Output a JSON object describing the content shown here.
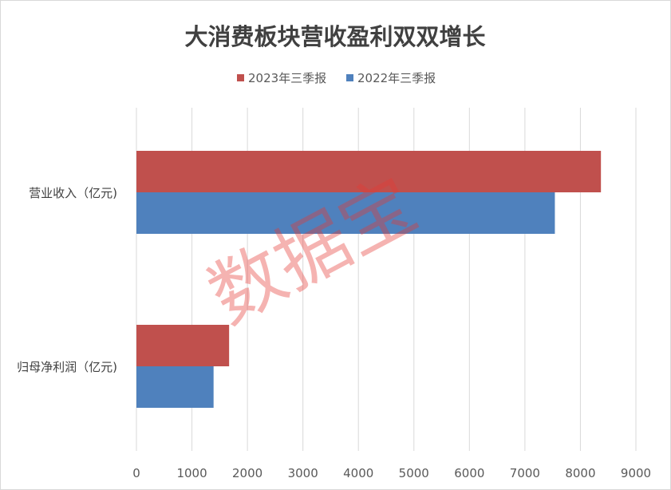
{
  "chart_data": {
    "type": "bar",
    "orientation": "horizontal",
    "title": "大消费板块营收盈利双双增长",
    "categories": [
      "营业收入（亿元)",
      "归母净利润（亿元)"
    ],
    "series": [
      {
        "name": "2023年三季报",
        "color": "#c0504d",
        "values": [
          8370,
          1670
        ]
      },
      {
        "name": "2022年三季报",
        "color": "#4f81bd",
        "values": [
          7540,
          1390
        ]
      }
    ],
    "xlim": [
      0,
      9000
    ],
    "xticks": [
      0,
      1000,
      2000,
      3000,
      4000,
      5000,
      6000,
      7000,
      8000,
      9000
    ],
    "grid": true,
    "legend_position": "top"
  },
  "watermark": "数据宝",
  "colors": {
    "gridline": "#d9d9d9",
    "title": "#404040",
    "label": "#595959"
  }
}
